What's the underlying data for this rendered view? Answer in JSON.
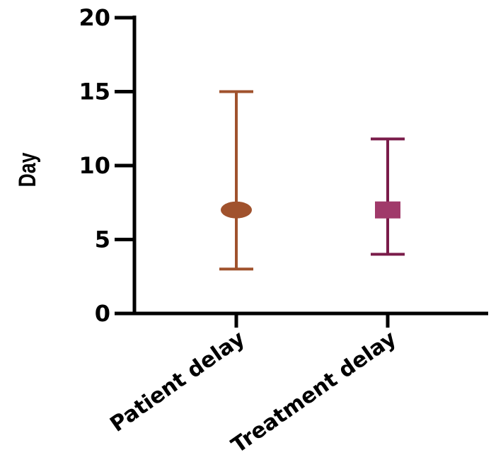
{
  "chart_data": {
    "type": "scatter",
    "ylabel": "Day",
    "xlabel": "",
    "title": "",
    "ylim": [
      0,
      20
    ],
    "yticks": [
      "0",
      "5",
      "10",
      "15",
      "20"
    ],
    "categories": [
      "Patient delay",
      "Treatment delay"
    ],
    "series": [
      {
        "category": "Patient delay",
        "value": 7,
        "low": 3,
        "high": 15,
        "marker": "circle",
        "color": "#a0522d"
      },
      {
        "category": "Treatment delay",
        "value": 7,
        "low": 4,
        "high": 11.8,
        "marker": "square",
        "color": "#7a1c4a",
        "marker_color": "#a03a6a"
      }
    ],
    "grid": false,
    "legend": "none"
  }
}
